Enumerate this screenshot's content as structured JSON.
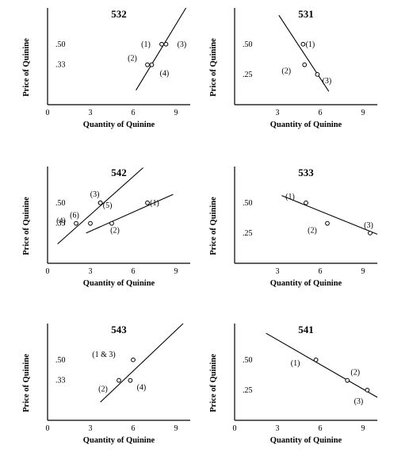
{
  "figure": {
    "panels": [
      {
        "title": "532",
        "xlabel": "Quantity of Quinine",
        "ylabel": "Price of Quinine",
        "xticks": [
          "0",
          "3",
          "6",
          "9"
        ],
        "yticks": [
          ".33",
          ".50"
        ],
        "points": [
          "(1)",
          "(2)",
          "(3)",
          "(4)"
        ]
      },
      {
        "title": "531",
        "xlabel": "Quantity of Quinine",
        "ylabel": "Price of Quinine",
        "xticks": [
          "3",
          "6",
          "9"
        ],
        "yticks": [
          ".25",
          ".50"
        ],
        "points": [
          "(1)",
          "(2)",
          "(3)"
        ]
      },
      {
        "title": "542",
        "xlabel": "Quantity of Quinine",
        "ylabel": "Price of Quinine",
        "xticks": [
          "0",
          "3",
          "6",
          "9"
        ],
        "yticks": [
          ".33",
          ".50"
        ],
        "points": [
          "(1)",
          "(2)",
          "(3)",
          "(4)",
          "(5)",
          "(6)"
        ]
      },
      {
        "title": "533",
        "xlabel": "Quantity of Quinine",
        "ylabel": "Price of Quinine",
        "xticks": [
          "3",
          "6",
          "9"
        ],
        "yticks": [
          ".25",
          ".50"
        ],
        "points": [
          "(1)",
          "(2)",
          "(3)"
        ]
      },
      {
        "title": "543",
        "xlabel": "Quantity of Quinine",
        "ylabel": "Price of Quinine",
        "xticks": [
          "0",
          "3",
          "6",
          "9"
        ],
        "yticks": [
          ".33",
          ".50"
        ],
        "points": [
          "(1 & 3)",
          "(2)",
          "(4)"
        ]
      },
      {
        "title": "541",
        "xlabel": "Quantity of Quinine",
        "ylabel": "Price of Quinine",
        "xticks": [
          "0",
          "3",
          "6",
          "9"
        ],
        "yticks": [
          ".25",
          ".50"
        ],
        "points": [
          "(1)",
          "(2)",
          "(3)"
        ]
      }
    ]
  },
  "chart_data": [
    {
      "type": "scatter",
      "title": "532",
      "xlabel": "Quantity of Quinine",
      "ylabel": "Price of Quinine",
      "xlim": [
        0,
        10
      ],
      "ylim": [
        0,
        0.8
      ],
      "xticks": [
        0,
        3,
        6,
        9
      ],
      "yticks": [
        0.33,
        0.5
      ],
      "grid": false,
      "points": [
        {
          "label": "(1)",
          "x": 8.0,
          "y": 0.5
        },
        {
          "label": "(2)",
          "x": 7.0,
          "y": 0.33
        },
        {
          "label": "(3)",
          "x": 8.3,
          "y": 0.5
        },
        {
          "label": "(4)",
          "x": 7.3,
          "y": 0.33
        }
      ],
      "lines": [
        {
          "x": [
            6.2,
            9.7
          ],
          "y": [
            0.12,
            0.8
          ]
        }
      ]
    },
    {
      "type": "scatter",
      "title": "531",
      "xlabel": "Quantity of Quinine",
      "ylabel": "Price of Quinine",
      "xlim": [
        0,
        10
      ],
      "ylim": [
        0,
        0.8
      ],
      "xticks": [
        3,
        6,
        9
      ],
      "yticks": [
        0.25,
        0.5
      ],
      "grid": false,
      "points": [
        {
          "label": "(1)",
          "x": 4.8,
          "y": 0.5
        },
        {
          "label": "(2)",
          "x": 4.9,
          "y": 0.33
        },
        {
          "label": "(3)",
          "x": 5.8,
          "y": 0.25
        }
      ],
      "lines": [
        {
          "x": [
            3.1,
            6.6
          ],
          "y": [
            0.74,
            0.11
          ]
        }
      ]
    },
    {
      "type": "scatter",
      "title": "542",
      "xlabel": "Quantity of Quinine",
      "ylabel": "Price of Quinine",
      "xlim": [
        0,
        10
      ],
      "ylim": [
        0,
        0.8
      ],
      "xticks": [
        0,
        3,
        6,
        9
      ],
      "yticks": [
        0.33,
        0.5
      ],
      "grid": false,
      "points": [
        {
          "label": "(1)",
          "x": 7.0,
          "y": 0.5
        },
        {
          "label": "(2)",
          "x": 4.5,
          "y": 0.33
        },
        {
          "label": "(3)",
          "x": 3.7,
          "y": 0.5
        },
        {
          "label": "(4)",
          "x": 2.0,
          "y": 0.33
        },
        {
          "label": "(5)",
          "x": 3.7,
          "y": 0.5
        },
        {
          "label": "(6)",
          "x": 3.0,
          "y": 0.33
        }
      ],
      "lines": [
        {
          "x": [
            0.7,
            6.7
          ],
          "y": [
            0.16,
            0.79
          ]
        },
        {
          "x": [
            2.7,
            8.8
          ],
          "y": [
            0.25,
            0.57
          ]
        }
      ]
    },
    {
      "type": "scatter",
      "title": "533",
      "xlabel": "Quantity of Quinine",
      "ylabel": "Price of Quinine",
      "xlim": [
        0,
        10
      ],
      "ylim": [
        0,
        0.8
      ],
      "xticks": [
        3,
        6,
        9
      ],
      "yticks": [
        0.25,
        0.5
      ],
      "grid": false,
      "points": [
        {
          "label": "(1)",
          "x": 5.0,
          "y": 0.5
        },
        {
          "label": "(2)",
          "x": 6.5,
          "y": 0.33
        },
        {
          "label": "(3)",
          "x": 9.5,
          "y": 0.25
        }
      ],
      "lines": [
        {
          "x": [
            3.3,
            10.0
          ],
          "y": [
            0.56,
            0.24
          ]
        }
      ]
    },
    {
      "type": "scatter",
      "title": "543",
      "xlabel": "Quantity of Quinine",
      "ylabel": "Price of Quinine",
      "xlim": [
        0,
        10
      ],
      "ylim": [
        0,
        0.8
      ],
      "xticks": [
        0,
        3,
        6,
        9
      ],
      "yticks": [
        0.33,
        0.5
      ],
      "grid": false,
      "points": [
        {
          "label": "(1 & 3)",
          "x": 6.0,
          "y": 0.5
        },
        {
          "label": "(2)",
          "x": 5.0,
          "y": 0.33
        },
        {
          "label": "(4)",
          "x": 5.8,
          "y": 0.33
        }
      ],
      "lines": [
        {
          "x": [
            3.7,
            9.5
          ],
          "y": [
            0.15,
            0.8
          ]
        }
      ]
    },
    {
      "type": "scatter",
      "title": "541",
      "xlabel": "Quantity of Quinine",
      "ylabel": "Price of Quinine",
      "xlim": [
        0,
        10
      ],
      "ylim": [
        0,
        0.8
      ],
      "xticks": [
        0,
        3,
        6,
        9
      ],
      "yticks": [
        0.25,
        0.5
      ],
      "grid": false,
      "points": [
        {
          "label": "(1)",
          "x": 5.7,
          "y": 0.5
        },
        {
          "label": "(2)",
          "x": 7.9,
          "y": 0.33
        },
        {
          "label": "(3)",
          "x": 9.3,
          "y": 0.25
        }
      ],
      "lines": [
        {
          "x": [
            2.2,
            10.0
          ],
          "y": [
            0.72,
            0.19
          ]
        }
      ]
    }
  ]
}
